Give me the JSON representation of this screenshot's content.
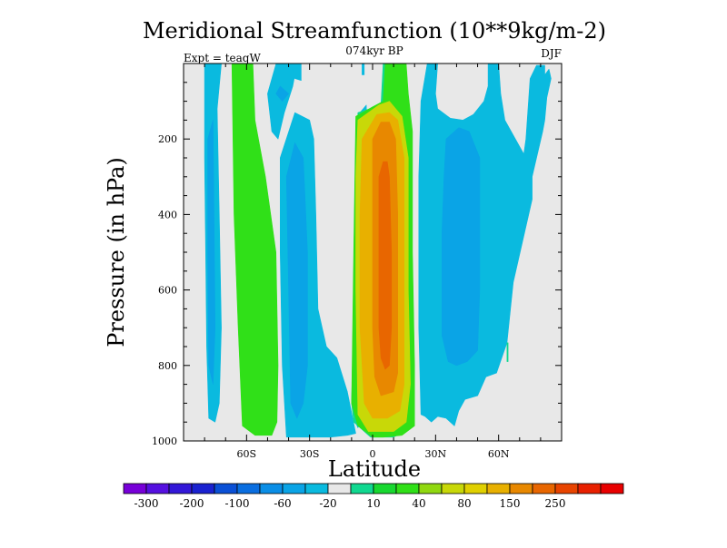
{
  "chart_data": {
    "type": "heatmap",
    "title": "Meridional Streamfunction (10**9kg/m-2)",
    "subtitle_center": "074kyr BP",
    "subtitle_left": "Expt = teaqW",
    "subtitle_right": "DJF",
    "xlabel": "Latitude",
    "ylabel": "Pressure (in hPa)",
    "xlim": [
      -90,
      90
    ],
    "ylim": [
      1000,
      0
    ],
    "x_ticks": [
      {
        "value": -60,
        "label": "60S"
      },
      {
        "value": -30,
        "label": "30S"
      },
      {
        "value": 0,
        "label": "0"
      },
      {
        "value": 30,
        "label": "30N"
      },
      {
        "value": 60,
        "label": "60N"
      }
    ],
    "y_ticks": [
      {
        "value": 200,
        "label": "200"
      },
      {
        "value": 400,
        "label": "400"
      },
      {
        "value": 600,
        "label": "600"
      },
      {
        "value": 800,
        "label": "800"
      },
      {
        "value": 1000,
        "label": "1000"
      }
    ],
    "colorbar": {
      "colors": [
        "#7700d8",
        "#5510e0",
        "#3318d8",
        "#1a22d0",
        "#0a50d6",
        "#0a6ee0",
        "#0a8ee6",
        "#0aa4e6",
        "#0abadf",
        "#e8e8e8",
        "#10d890",
        "#18d830",
        "#30e018",
        "#90d810",
        "#c8d808",
        "#e0d000",
        "#e8b000",
        "#e88800",
        "#e86600",
        "#e84400",
        "#e82000",
        "#e80000"
      ],
      "labels": [
        "-300",
        "-200",
        "-100",
        "-60",
        "-20",
        "10",
        "40",
        "80",
        "150",
        "250"
      ]
    },
    "contour_regions": [
      {
        "level": -20,
        "color": "#0abadf",
        "points": [
          [
            -80,
            1
          ],
          [
            -72,
            1
          ],
          [
            -74,
            120
          ],
          [
            -73,
            400
          ],
          [
            -72,
            700
          ],
          [
            -73,
            900
          ],
          [
            -75,
            950
          ],
          [
            -78,
            940
          ],
          [
            -79,
            750
          ],
          [
            -79.5,
            500
          ],
          [
            -80,
            250
          ]
        ]
      },
      {
        "level": -60,
        "color": "#0aa4e6",
        "points": [
          [
            -78.5,
            200
          ],
          [
            -76,
            150
          ],
          [
            -75.5,
            400
          ],
          [
            -75,
            700
          ],
          [
            -76,
            850
          ],
          [
            -78,
            800
          ],
          [
            -78.5,
            500
          ]
        ]
      },
      {
        "level": 40,
        "color": "#30e018",
        "points": [
          [
            -67,
            1
          ],
          [
            -57,
            1
          ],
          [
            -56,
            150
          ],
          [
            -51,
            300
          ],
          [
            -46,
            500
          ],
          [
            -45,
            800
          ],
          [
            -45.5,
            950
          ],
          [
            -48,
            985
          ],
          [
            -56,
            985
          ],
          [
            -62,
            960
          ],
          [
            -64,
            700
          ],
          [
            -66,
            400
          ]
        ]
      },
      {
        "level": -20,
        "color": "#0abadf",
        "points": [
          [
            -46,
            1
          ],
          [
            -36,
            1
          ],
          [
            -38,
            60
          ],
          [
            -42,
            130
          ],
          [
            -45,
            200
          ],
          [
            -48,
            180
          ],
          [
            -50,
            80
          ]
        ]
      },
      {
        "level": -20,
        "color": "#0abadf",
        "points": [
          [
            -39,
            1
          ],
          [
            -34,
            1
          ],
          [
            -34,
            45
          ],
          [
            -37,
            40
          ]
        ]
      },
      {
        "level": -60,
        "color": "#0aa4e6",
        "points": [
          [
            -44,
            60
          ],
          [
            -40,
            80
          ],
          [
            -43,
            100
          ],
          [
            -46,
            80
          ]
        ]
      },
      {
        "level": -20,
        "color": "#0abadf",
        "points": [
          [
            -44,
            250
          ],
          [
            -37,
            130
          ],
          [
            -30,
            150
          ],
          [
            -28,
            200
          ],
          [
            -27,
            400
          ],
          [
            -26,
            650
          ],
          [
            -22,
            750
          ],
          [
            -17,
            780
          ],
          [
            -12,
            870
          ],
          [
            -8,
            980
          ],
          [
            -12,
            985
          ],
          [
            -20,
            990
          ],
          [
            -30,
            990
          ],
          [
            -41,
            990
          ],
          [
            -43,
            800
          ],
          [
            -44,
            500
          ]
        ]
      },
      {
        "level": -60,
        "color": "#0aa4e6",
        "points": [
          [
            -41,
            300
          ],
          [
            -37,
            210
          ],
          [
            -33,
            250
          ],
          [
            -31,
            500
          ],
          [
            -31,
            800
          ],
          [
            -33,
            900
          ],
          [
            -36,
            940
          ],
          [
            -39,
            900
          ],
          [
            -40,
            600
          ]
        ]
      },
      {
        "level": -20,
        "color": "#0abadf",
        "points": [
          [
            -5,
            1
          ],
          [
            -4,
            1
          ],
          [
            -4,
            30
          ],
          [
            -5,
            30
          ]
        ]
      },
      {
        "level": -20,
        "color": "#0abadf",
        "points": [
          [
            -6,
            130
          ],
          [
            -3,
            110
          ],
          [
            -2,
            400
          ],
          [
            -3,
            750
          ],
          [
            -5,
            950
          ],
          [
            -7,
            965
          ],
          [
            -9,
            940
          ],
          [
            -10,
            900
          ]
        ]
      },
      {
        "level": 10,
        "color": "#10d890",
        "points": [
          [
            -7,
            130
          ],
          [
            4,
            110
          ],
          [
            5,
            1
          ],
          [
            7,
            1
          ],
          [
            7,
            105
          ],
          [
            10,
            120
          ],
          [
            15,
            190
          ],
          [
            16,
            400
          ],
          [
            16,
            800
          ],
          [
            17,
            970
          ],
          [
            10,
            990
          ],
          [
            -1,
            990
          ],
          [
            -9,
            950
          ],
          [
            -10,
            900
          ],
          [
            -8,
            400
          ]
        ]
      },
      {
        "level": 40,
        "color": "#30e018",
        "points": [
          [
            6,
            1
          ],
          [
            16,
            1
          ],
          [
            17,
            80
          ],
          [
            19,
            180
          ],
          [
            19,
            500
          ],
          [
            20,
            800
          ],
          [
            20,
            960
          ],
          [
            14,
            985
          ],
          [
            5,
            990
          ],
          [
            0,
            990
          ],
          [
            -7,
            960
          ],
          [
            -10,
            900
          ],
          [
            -9,
            500
          ],
          [
            -8,
            140
          ],
          [
            0,
            115
          ],
          [
            5,
            100
          ]
        ]
      },
      {
        "level": 80,
        "color": "#c8d808",
        "points": [
          [
            -7,
            150
          ],
          [
            3,
            110
          ],
          [
            8,
            100
          ],
          [
            14,
            140
          ],
          [
            17,
            250
          ],
          [
            17,
            600
          ],
          [
            18,
            850
          ],
          [
            16,
            950
          ],
          [
            10,
            975
          ],
          [
            5,
            975
          ],
          [
            -2,
            975
          ],
          [
            -7,
            930
          ],
          [
            -8,
            600
          ],
          [
            -8,
            300
          ]
        ]
      },
      {
        "level": 150,
        "color": "#e8b000",
        "points": [
          [
            -5,
            200
          ],
          [
            2,
            135
          ],
          [
            8,
            130
          ],
          [
            12,
            150
          ],
          [
            15,
            250
          ],
          [
            15,
            600
          ],
          [
            15,
            850
          ],
          [
            13,
            920
          ],
          [
            7,
            940
          ],
          [
            0,
            940
          ],
          [
            -4,
            900
          ],
          [
            -6,
            700
          ],
          [
            -6,
            400
          ]
        ]
      },
      {
        "level": 200,
        "color": "#e88800",
        "points": [
          [
            0,
            200
          ],
          [
            4,
            155
          ],
          [
            8,
            155
          ],
          [
            11,
            200
          ],
          [
            12,
            400
          ],
          [
            12,
            650
          ],
          [
            12,
            820
          ],
          [
            10,
            870
          ],
          [
            4,
            880
          ],
          [
            1,
            830
          ],
          [
            0,
            700
          ],
          [
            0,
            400
          ]
        ]
      },
      {
        "level": 250,
        "color": "#e86600",
        "points": [
          [
            3,
            300
          ],
          [
            5,
            260
          ],
          [
            7,
            260
          ],
          [
            8,
            300
          ],
          [
            9,
            500
          ],
          [
            9,
            700
          ],
          [
            8,
            800
          ],
          [
            6,
            810
          ],
          [
            4,
            780
          ],
          [
            3,
            700
          ],
          [
            3,
            500
          ]
        ]
      },
      {
        "level": -20,
        "color": "#0abadf",
        "points": [
          [
            26,
            1
          ],
          [
            31,
            1
          ],
          [
            30,
            80
          ],
          [
            31,
            120
          ],
          [
            37,
            145
          ],
          [
            43,
            150
          ],
          [
            48,
            135
          ],
          [
            53,
            100
          ],
          [
            55,
            60
          ],
          [
            55,
            1
          ],
          [
            60,
            1
          ],
          [
            61,
            80
          ],
          [
            63,
            150
          ],
          [
            72,
            240
          ],
          [
            73,
            200
          ],
          [
            75,
            40
          ],
          [
            78,
            5
          ],
          [
            82,
            5
          ],
          [
            82,
            30
          ],
          [
            84,
            15
          ],
          [
            85,
            40
          ],
          [
            83,
            90
          ],
          [
            82,
            150
          ],
          [
            81,
            180
          ],
          [
            76,
            300
          ],
          [
            76,
            360
          ],
          [
            67,
            580
          ],
          [
            64,
            740
          ],
          [
            59,
            820
          ],
          [
            54,
            830
          ],
          [
            50,
            880
          ],
          [
            44,
            890
          ],
          [
            41,
            920
          ],
          [
            39,
            960
          ],
          [
            35,
            940
          ],
          [
            31,
            935
          ],
          [
            28,
            950
          ],
          [
            25,
            935
          ],
          [
            23,
            930
          ],
          [
            22,
            700
          ],
          [
            22,
            300
          ],
          [
            23,
            100
          ]
        ]
      },
      {
        "level": -60,
        "color": "#0aa4e6",
        "points": [
          [
            35,
            200
          ],
          [
            41,
            170
          ],
          [
            46,
            180
          ],
          [
            51,
            250
          ],
          [
            51,
            600
          ],
          [
            50,
            760
          ],
          [
            45,
            790
          ],
          [
            40,
            800
          ],
          [
            36,
            790
          ],
          [
            33,
            720
          ],
          [
            33,
            450
          ],
          [
            34,
            300
          ]
        ]
      },
      {
        "level": 10,
        "color": "#10d890",
        "points": [
          [
            64,
            740
          ],
          [
            64.5,
            740
          ],
          [
            64.5,
            790
          ],
          [
            64,
            790
          ]
        ]
      }
    ]
  }
}
